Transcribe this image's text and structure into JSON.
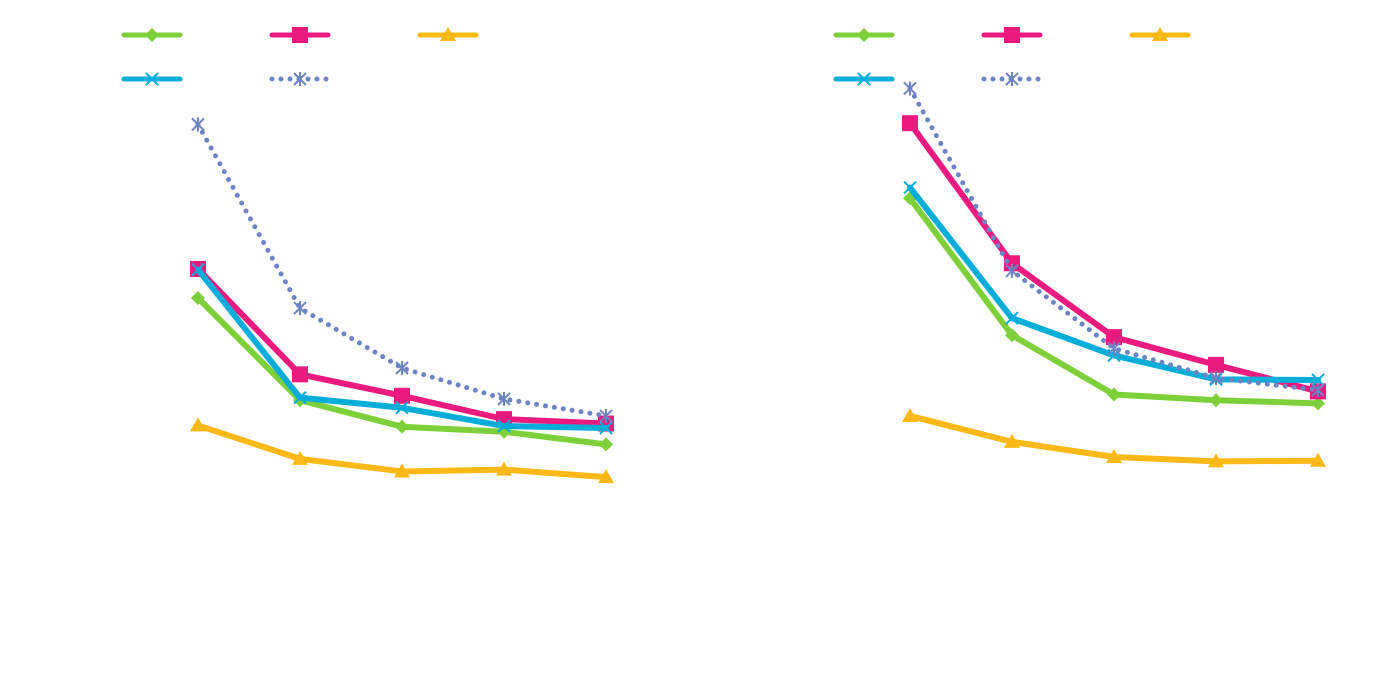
{
  "chart_data": [
    {
      "type": "line",
      "title": "",
      "xlabel": "",
      "ylabel": "",
      "x": [
        1,
        2,
        3,
        4,
        5
      ],
      "ylim": [
        0,
        100
      ],
      "grid": false,
      "legend_position": "top",
      "series": [
        {
          "color": "#7ed03b",
          "marker": "diamond",
          "dash": "solid",
          "values": [
            58.8,
            42.6,
            38.4,
            37.6,
            35.6
          ]
        },
        {
          "color": "#eb1a7f",
          "marker": "square",
          "dash": "solid",
          "values": [
            63.4,
            46.7,
            43.3,
            39.6,
            38.9
          ]
        },
        {
          "color": "#fbb917",
          "marker": "triangle",
          "dash": "solid",
          "values": [
            38.6,
            33.3,
            31.3,
            31.6,
            30.4
          ]
        },
        {
          "color": "#07add9",
          "marker": "x",
          "dash": "solid",
          "values": [
            63.3,
            43.0,
            41.4,
            38.5,
            38.2
          ]
        },
        {
          "color": "#6d84c4",
          "marker": "asterisk",
          "dash": "dotted",
          "values": [
            86.3,
            57.2,
            47.7,
            42.8,
            40.1
          ]
        }
      ]
    },
    {
      "type": "line",
      "title": "",
      "xlabel": "",
      "ylabel": "",
      "x": [
        1,
        2,
        3,
        4,
        5
      ],
      "ylim": [
        0,
        100
      ],
      "grid": false,
      "legend_position": "top",
      "series": [
        {
          "color": "#7ed03b",
          "marker": "diamond",
          "dash": "solid",
          "values": [
            74.6,
            52.9,
            43.5,
            42.6,
            42.1
          ]
        },
        {
          "color": "#eb1a7f",
          "marker": "square",
          "dash": "solid",
          "values": [
            86.5,
            64.3,
            52.6,
            48.2,
            44.0
          ]
        },
        {
          "color": "#fbb917",
          "marker": "triangle",
          "dash": "solid",
          "values": [
            40.1,
            36.0,
            33.6,
            32.9,
            33.0
          ]
        },
        {
          "color": "#07add9",
          "marker": "x",
          "dash": "solid",
          "values": [
            76.3,
            55.6,
            49.7,
            45.9,
            45.8
          ]
        },
        {
          "color": "#6d84c4",
          "marker": "asterisk",
          "dash": "dotted",
          "values": [
            92.0,
            63.1,
            50.8,
            46.1,
            44.2
          ]
        }
      ]
    }
  ]
}
